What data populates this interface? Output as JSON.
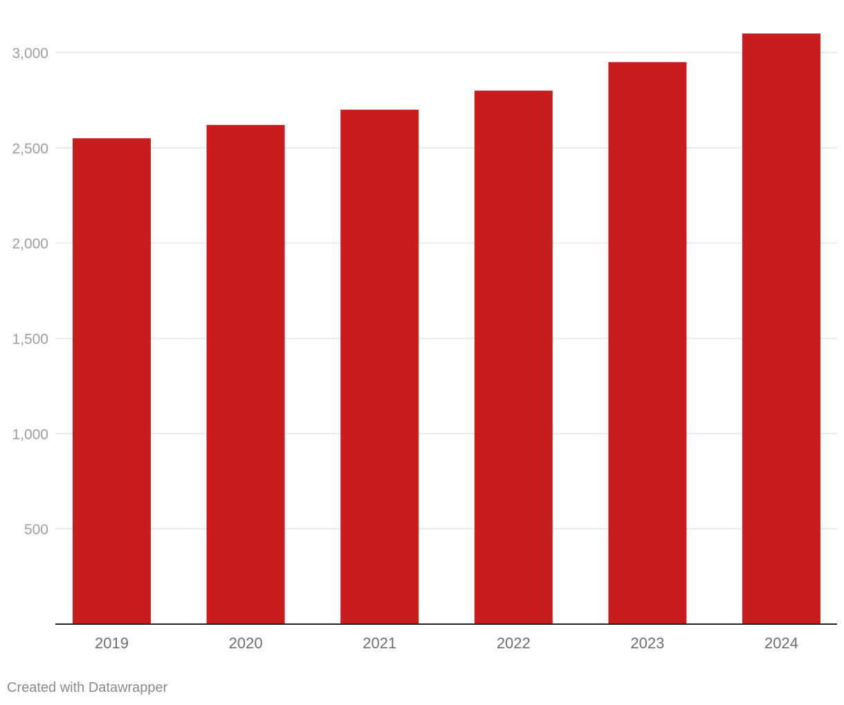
{
  "chart_data": {
    "type": "bar",
    "categories": [
      "2019",
      "2020",
      "2021",
      "2022",
      "2023",
      "2024"
    ],
    "values": [
      2550,
      2620,
      2700,
      2800,
      2950,
      3100
    ],
    "ylim": [
      0,
      3100
    ],
    "yticks": [
      500,
      1000,
      1500,
      2000,
      2500,
      3000
    ],
    "ytick_labels": [
      "500",
      "1,000",
      "1,500",
      "2,000",
      "2,500",
      "3,000"
    ],
    "grid": true,
    "bar_color": "#c71d1e"
  },
  "footer": {
    "credit": "Created with Datawrapper"
  }
}
